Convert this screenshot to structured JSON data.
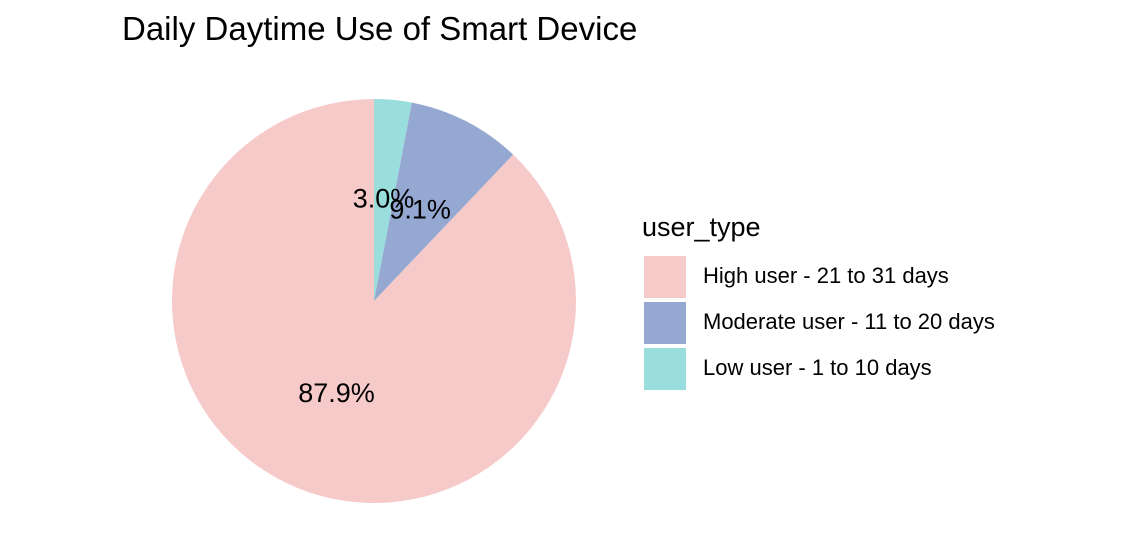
{
  "chart_data": {
    "type": "pie",
    "title": "Daily Daytime Use of Smart Device",
    "legend_title": "user_type",
    "legend_position": "right",
    "start_angle_deg": 0,
    "direction": "clockwise",
    "slices": [
      {
        "label": "Low user - 1 to 10 days",
        "value": 3.0,
        "percent_label": "3.0%",
        "color": "#99DEDC"
      },
      {
        "label": "Moderate user - 11 to 20 days",
        "value": 9.1,
        "percent_label": "9.1%",
        "color": "#94A8D1"
      },
      {
        "label": "High user - 21 to 31 days",
        "value": 87.9,
        "percent_label": "87.9%",
        "color": "#F7CACA"
      }
    ],
    "legend_order": [
      "High user - 21 to 31 days",
      "Moderate user - 11 to 20 days",
      "Low user - 1 to 10 days"
    ]
  }
}
